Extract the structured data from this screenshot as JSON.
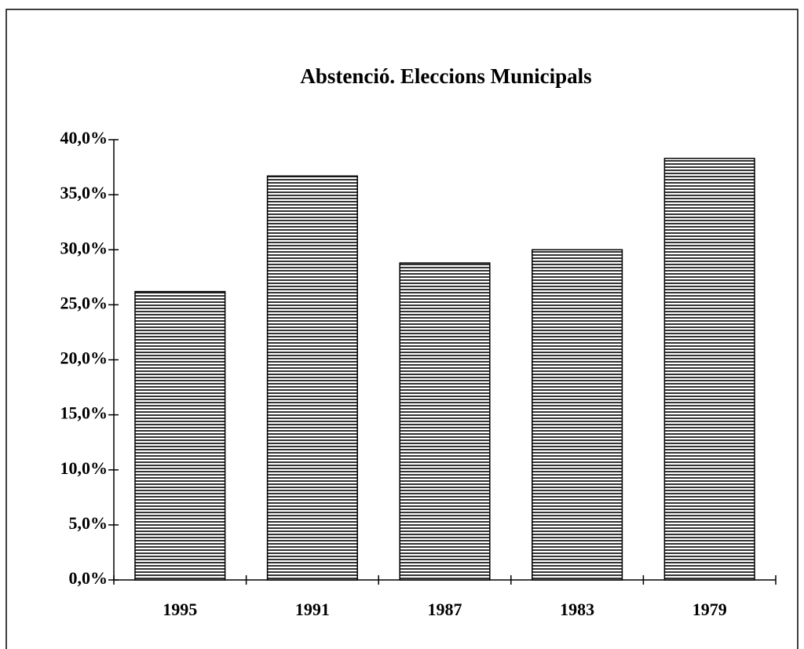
{
  "chart_data": {
    "type": "bar",
    "title": "Abstenció. Eleccions Municipals",
    "categories": [
      "1995",
      "1991",
      "1987",
      "1983",
      "1979"
    ],
    "values": [
      26.2,
      36.7,
      28.8,
      30.0,
      38.3
    ],
    "color": "#000000",
    "ylim": [
      0,
      40
    ],
    "yticks": [
      {
        "value": 0,
        "label": "0,0%"
      },
      {
        "value": 5,
        "label": "5,0%"
      },
      {
        "value": 10,
        "label": "10,0%"
      },
      {
        "value": 15,
        "label": "15,0%"
      },
      {
        "value": 20,
        "label": "20,0%"
      },
      {
        "value": 25,
        "label": "25,0%"
      },
      {
        "value": 30,
        "label": "30,0%"
      },
      {
        "value": 35,
        "label": "35,0%"
      },
      {
        "value": 40,
        "label": "40,0%"
      }
    ]
  }
}
